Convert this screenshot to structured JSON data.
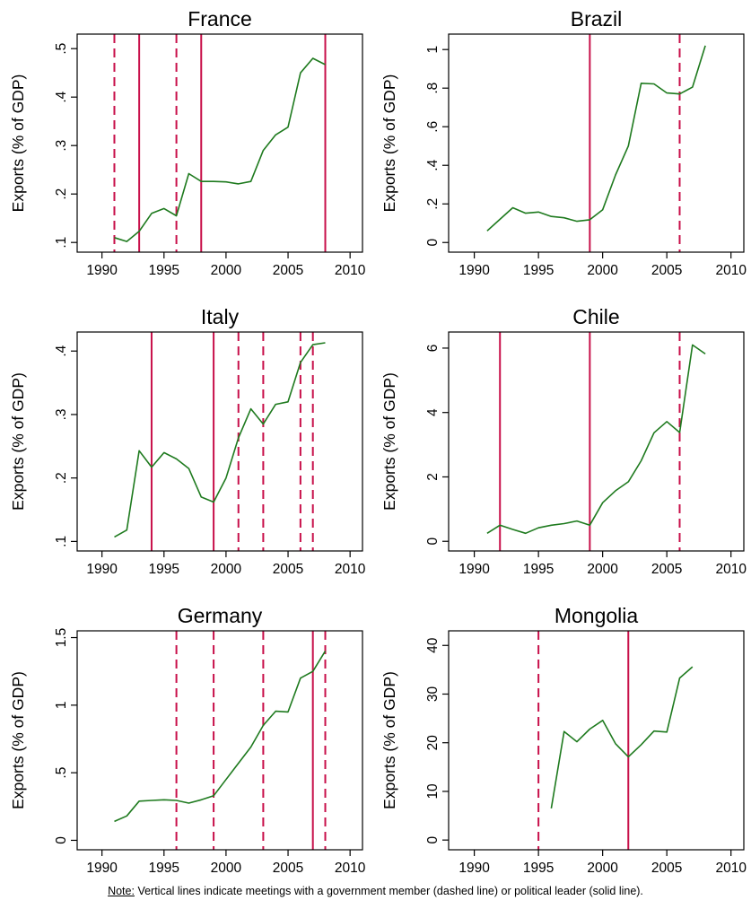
{
  "colors": {
    "series": "#1e7a1e",
    "meeting": "#c8104a",
    "axis": "#000000"
  },
  "legend": {
    "dashed": "government member",
    "solid": "political leader"
  },
  "note": {
    "label": "Note:",
    "text": " Vertical lines indicate meetings with a government member (dashed line) or political leader (solid line)."
  },
  "chart_data": [
    {
      "type": "line",
      "title": "France",
      "ylabel": "Exports (% of GDP)",
      "xlim": [
        1988,
        2011
      ],
      "ylim": [
        0.08,
        0.53
      ],
      "xticks": [
        1990,
        1995,
        2000,
        2005,
        2010
      ],
      "xtick_labels": [
        "1990",
        "1995",
        "2000",
        "2005",
        "2010"
      ],
      "yticks": [
        0.1,
        0.2,
        0.3,
        0.4,
        0.5
      ],
      "ytick_labels": [
        ".1",
        ".2",
        ".3",
        ".4",
        ".5"
      ],
      "x": [
        1991,
        1992,
        1993,
        1994,
        1995,
        1996,
        1997,
        1998,
        1999,
        2000,
        2001,
        2002,
        2003,
        2004,
        2005,
        2006,
        2007,
        2008
      ],
      "y": [
        0.11,
        0.102,
        0.123,
        0.16,
        0.17,
        0.155,
        0.242,
        0.226,
        0.226,
        0.225,
        0.221,
        0.226,
        0.29,
        0.322,
        0.338,
        0.45,
        0.48,
        0.467
      ],
      "meetings": [
        {
          "year": 1991,
          "kind": "dashed"
        },
        {
          "year": 1993,
          "kind": "solid"
        },
        {
          "year": 1996,
          "kind": "dashed"
        },
        {
          "year": 1998,
          "kind": "solid"
        },
        {
          "year": 2008,
          "kind": "solid"
        }
      ]
    },
    {
      "type": "line",
      "title": "Brazil",
      "ylabel": "Exports (% of GDP)",
      "xlim": [
        1988,
        2011
      ],
      "ylim": [
        -0.05,
        1.08
      ],
      "xticks": [
        1990,
        1995,
        2000,
        2005,
        2010
      ],
      "xtick_labels": [
        "1990",
        "1995",
        "2000",
        "2005",
        "2010"
      ],
      "yticks": [
        0,
        0.2,
        0.4,
        0.6,
        0.8,
        1
      ],
      "ytick_labels": [
        "0",
        ".2",
        ".4",
        ".6",
        ".8",
        "1"
      ],
      "x": [
        1991,
        1992,
        1993,
        1994,
        1995,
        1996,
        1997,
        1998,
        1999,
        2000,
        2001,
        2002,
        2003,
        2004,
        2005,
        2006,
        2007,
        2008
      ],
      "y": [
        0.06,
        0.12,
        0.18,
        0.152,
        0.158,
        0.135,
        0.128,
        0.11,
        0.118,
        0.17,
        0.35,
        0.5,
        0.825,
        0.822,
        0.775,
        0.77,
        0.805,
        1.02
      ],
      "meetings": [
        {
          "year": 1999,
          "kind": "solid"
        },
        {
          "year": 2006,
          "kind": "dashed"
        }
      ]
    },
    {
      "type": "line",
      "title": "Italy",
      "ylabel": "Exports (% of GDP)",
      "xlim": [
        1988,
        2011
      ],
      "ylim": [
        0.085,
        0.43
      ],
      "xticks": [
        1990,
        1995,
        2000,
        2005,
        2010
      ],
      "xtick_labels": [
        "1990",
        "1995",
        "2000",
        "2005",
        "2010"
      ],
      "yticks": [
        0.1,
        0.2,
        0.3,
        0.4
      ],
      "ytick_labels": [
        ".1",
        ".2",
        ".3",
        ".4"
      ],
      "x": [
        1991,
        1992,
        1993,
        1994,
        1995,
        1996,
        1997,
        1998,
        1999,
        2000,
        2001,
        2002,
        2003,
        2004,
        2005,
        2006,
        2007,
        2008
      ],
      "y": [
        0.107,
        0.118,
        0.243,
        0.217,
        0.24,
        0.23,
        0.215,
        0.17,
        0.162,
        0.2,
        0.263,
        0.309,
        0.285,
        0.316,
        0.32,
        0.382,
        0.41,
        0.413
      ],
      "meetings": [
        {
          "year": 1994,
          "kind": "solid"
        },
        {
          "year": 1999,
          "kind": "solid"
        },
        {
          "year": 2001,
          "kind": "dashed"
        },
        {
          "year": 2003,
          "kind": "dashed"
        },
        {
          "year": 2006,
          "kind": "dashed"
        },
        {
          "year": 2007,
          "kind": "dashed"
        }
      ]
    },
    {
      "type": "line",
      "title": "Chile",
      "ylabel": "Exports (% of GDP)",
      "xlim": [
        1988,
        2011
      ],
      "ylim": [
        -0.3,
        6.5
      ],
      "xticks": [
        1990,
        1995,
        2000,
        2005,
        2010
      ],
      "xtick_labels": [
        "1990",
        "1995",
        "2000",
        "2005",
        "2010"
      ],
      "yticks": [
        0,
        2,
        4,
        6
      ],
      "ytick_labels": [
        "0",
        "2",
        "4",
        "6"
      ],
      "x": [
        1991,
        1992,
        1993,
        1994,
        1995,
        1996,
        1997,
        1998,
        1999,
        2000,
        2001,
        2002,
        2003,
        2004,
        2005,
        2006,
        2007,
        2008
      ],
      "y": [
        0.25,
        0.5,
        0.37,
        0.25,
        0.42,
        0.5,
        0.55,
        0.63,
        0.5,
        1.2,
        1.57,
        1.85,
        2.5,
        3.37,
        3.72,
        3.38,
        6.1,
        5.82
      ],
      "meetings": [
        {
          "year": 1992,
          "kind": "solid"
        },
        {
          "year": 1999,
          "kind": "solid"
        },
        {
          "year": 2006,
          "kind": "dashed"
        }
      ]
    },
    {
      "type": "line",
      "title": "Germany",
      "ylabel": "Exports (% of GDP)",
      "xlim": [
        1988,
        2011
      ],
      "ylim": [
        -0.07,
        1.55
      ],
      "xticks": [
        1990,
        1995,
        2000,
        2005,
        2010
      ],
      "xtick_labels": [
        "1990",
        "1995",
        "2000",
        "2005",
        "2010"
      ],
      "yticks": [
        0,
        0.5,
        1,
        1.5
      ],
      "ytick_labels": [
        "0",
        ".5",
        "1",
        "1.5"
      ],
      "x": [
        1991,
        1992,
        1993,
        1994,
        1995,
        1996,
        1997,
        1998,
        1999,
        2000,
        2001,
        2002,
        2003,
        2004,
        2005,
        2006,
        2007,
        2008
      ],
      "y": [
        0.14,
        0.18,
        0.29,
        0.295,
        0.3,
        0.295,
        0.275,
        0.3,
        0.33,
        0.45,
        0.57,
        0.69,
        0.85,
        0.955,
        0.95,
        1.2,
        1.25,
        1.4
      ],
      "meetings": [
        {
          "year": 1996,
          "kind": "dashed"
        },
        {
          "year": 1999,
          "kind": "dashed"
        },
        {
          "year": 2003,
          "kind": "dashed"
        },
        {
          "year": 2007,
          "kind": "solid"
        },
        {
          "year": 2008,
          "kind": "dashed"
        }
      ]
    },
    {
      "type": "line",
      "title": "Mongolia",
      "ylabel": "Exports (% of GDP)",
      "xlim": [
        1988,
        2011
      ],
      "ylim": [
        -2,
        43
      ],
      "xticks": [
        1990,
        1995,
        2000,
        2005,
        2010
      ],
      "xtick_labels": [
        "1990",
        "1995",
        "2000",
        "2005",
        "2010"
      ],
      "yticks": [
        0,
        10,
        20,
        30,
        40
      ],
      "ytick_labels": [
        "0",
        "10",
        "20",
        "30",
        "40"
      ],
      "x": [
        1996,
        1997,
        1998,
        1999,
        2000,
        2001,
        2002,
        2003,
        2004,
        2005,
        2006,
        2007
      ],
      "y": [
        6.5,
        22.3,
        20.2,
        22.8,
        24.6,
        19.8,
        17.1,
        19.6,
        22.4,
        22.2,
        33.3,
        35.6
      ],
      "meetings": [
        {
          "year": 1995,
          "kind": "dashed"
        },
        {
          "year": 2002,
          "kind": "solid"
        }
      ]
    }
  ]
}
